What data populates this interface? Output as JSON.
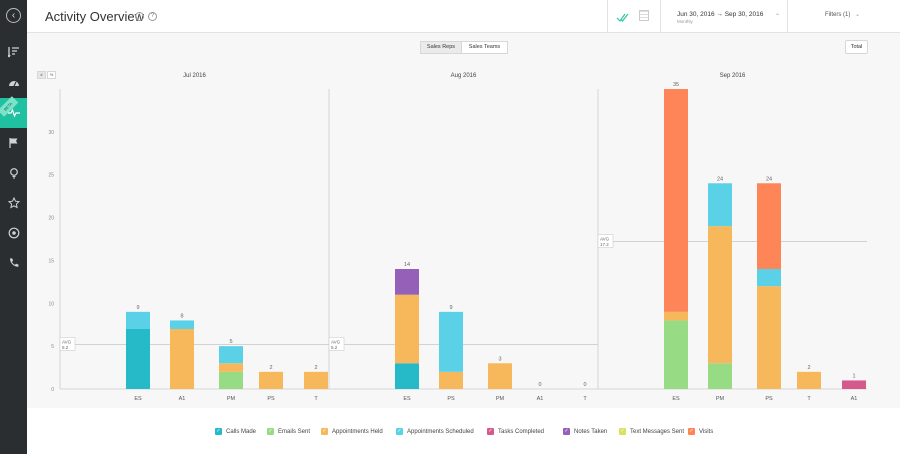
{
  "header": {
    "title": "Activity Overview",
    "info_glyph": "i",
    "help_glyph": "?",
    "date_range": "Jun 30, 2016 → Sep 30, 2016",
    "date_granularity": "Monthly",
    "filters_label": "Filters (1)"
  },
  "sidebar": {
    "beta_label": "BETA",
    "items": [
      {
        "icon": "sort-list-icon"
      },
      {
        "icon": "speedometer-icon"
      },
      {
        "icon": "activity-pulse-icon"
      },
      {
        "icon": "flag-icon"
      },
      {
        "icon": "lightbulb-icon"
      },
      {
        "icon": "star-icon"
      },
      {
        "icon": "target-icon"
      },
      {
        "icon": "phone-icon"
      }
    ]
  },
  "toolbar": {
    "tabs": [
      "Sales Reps",
      "Sales Teams"
    ],
    "active_tab": "Sales Reps",
    "total_label": "Total",
    "toggle_number": "#",
    "toggle_percent": "%"
  },
  "colors": {
    "calls_made": "#26bac9",
    "emails_sent": "#97dc84",
    "appointments_held": "#f7b75b",
    "appointments_scheduled": "#5bd1e8",
    "tasks_completed": "#d5598d",
    "notes_taken": "#9460b8",
    "text_messages_sent": "#d9e25e",
    "visits": "#fd8557"
  },
  "chart_data": {
    "type": "bar",
    "stacked": true,
    "ylim": [
      0,
      35
    ],
    "yticks": [
      0,
      5,
      10,
      15,
      20,
      25,
      30
    ],
    "avg_label": "AVG",
    "legend_placement": "bottom",
    "series_names": [
      "Calls Made",
      "Emails Sent",
      "Appointments Held",
      "Appointments Scheduled",
      "Tasks Completed",
      "Notes Taken",
      "Text Messages Sent",
      "Visits"
    ],
    "groups": [
      {
        "title": "Jul 2016",
        "avg": 5.2,
        "bars": [
          {
            "label": "ES",
            "total": 9,
            "segments": {
              "Calls Made": 7,
              "Appointments Scheduled": 2
            }
          },
          {
            "label": "A1",
            "total": 8,
            "segments": {
              "Appointments Held": 7,
              "Appointments Scheduled": 1
            }
          },
          {
            "label": "PM",
            "total": 5,
            "segments": {
              "Emails Sent": 2,
              "Appointments Held": 1,
              "Appointments Scheduled": 2
            }
          },
          {
            "label": "PS",
            "total": 2,
            "segments": {
              "Appointments Held": 2
            }
          },
          {
            "label": "T",
            "total": 2,
            "segments": {
              "Appointments Held": 2
            }
          }
        ]
      },
      {
        "title": "Aug 2016",
        "avg": 5.2,
        "bars": [
          {
            "label": "ES",
            "total": 14,
            "segments": {
              "Calls Made": 3,
              "Appointments Held": 8,
              "Notes Taken": 3
            }
          },
          {
            "label": "PS",
            "total": 9,
            "segments": {
              "Appointments Held": 2,
              "Appointments Scheduled": 7
            }
          },
          {
            "label": "PM",
            "total": 3,
            "segments": {
              "Appointments Held": 3
            }
          },
          {
            "label": "A1",
            "total": 0,
            "segments": {}
          },
          {
            "label": "T",
            "total": 0,
            "segments": {}
          }
        ]
      },
      {
        "title": "Sep 2016",
        "avg": 17.2,
        "bars": [
          {
            "label": "ES",
            "total": 35,
            "segments": {
              "Emails Sent": 8,
              "Appointments Held": 1,
              "Visits": 26
            }
          },
          {
            "label": "PM",
            "total": 24,
            "segments": {
              "Emails Sent": 3,
              "Appointments Held": 16,
              "Appointments Scheduled": 5
            }
          },
          {
            "label": "PS",
            "total": 24,
            "segments": {
              "Appointments Held": 12,
              "Appointments Scheduled": 2,
              "Visits": 10
            }
          },
          {
            "label": "T",
            "total": 2,
            "segments": {
              "Appointments Held": 2
            }
          },
          {
            "label": "A1",
            "total": 1,
            "segments": {
              "Tasks Completed": 1
            }
          }
        ]
      }
    ]
  },
  "legend": [
    {
      "label": "Calls Made",
      "key": "calls_made",
      "checked": true
    },
    {
      "label": "Emails Sent",
      "key": "emails_sent",
      "checked": true
    },
    {
      "label": "Appointments Held",
      "key": "appointments_held",
      "checked": true
    },
    {
      "label": "Appointments Scheduled",
      "key": "appointments_scheduled",
      "checked": true
    },
    {
      "label": "Tasks Completed",
      "key": "tasks_completed",
      "checked": true
    },
    {
      "label": "Notes Taken",
      "key": "notes_taken",
      "checked": true
    },
    {
      "label": "Text Messages Sent",
      "key": "text_messages_sent",
      "checked": true
    },
    {
      "label": "Visits",
      "key": "visits",
      "checked": true
    }
  ]
}
